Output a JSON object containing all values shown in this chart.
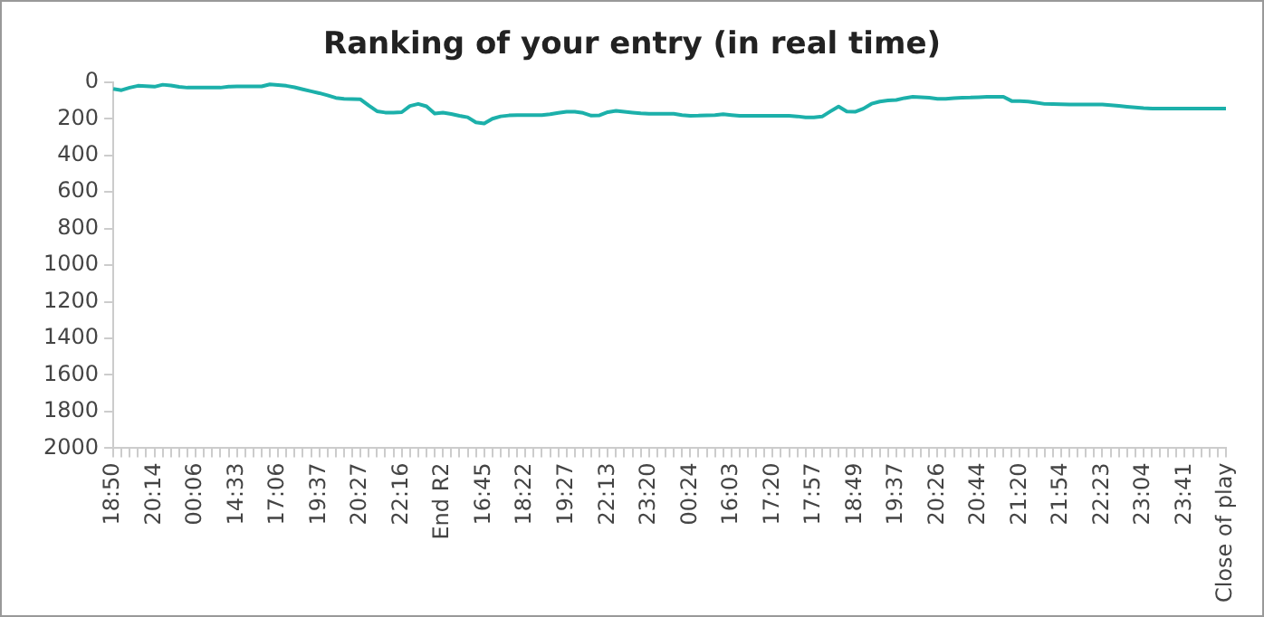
{
  "chart_data": {
    "type": "line",
    "title": "Ranking of your entry (in real time)",
    "categories": [
      "18:50",
      null,
      null,
      null,
      null,
      "20:14",
      null,
      null,
      null,
      null,
      "00:06",
      null,
      null,
      null,
      null,
      "14:33",
      null,
      null,
      null,
      null,
      "17:06",
      null,
      null,
      null,
      null,
      "19:37",
      null,
      null,
      null,
      null,
      "20:27",
      null,
      null,
      null,
      null,
      "22:16",
      null,
      null,
      null,
      null,
      "End R2",
      null,
      null,
      null,
      null,
      "16:45",
      null,
      null,
      null,
      null,
      "18:22",
      null,
      null,
      null,
      null,
      "19:27",
      null,
      null,
      null,
      null,
      "22:13",
      null,
      null,
      null,
      null,
      "23:20",
      null,
      null,
      null,
      null,
      "00:24",
      null,
      null,
      null,
      null,
      "16:03",
      null,
      null,
      null,
      null,
      "17:20",
      null,
      null,
      null,
      null,
      "17:57",
      null,
      null,
      null,
      null,
      "18:49",
      null,
      null,
      null,
      null,
      "19:37",
      null,
      null,
      null,
      null,
      "20:26",
      null,
      null,
      null,
      null,
      "20:44",
      null,
      null,
      null,
      null,
      "21:20",
      null,
      null,
      null,
      null,
      "21:54",
      null,
      null,
      null,
      null,
      "22:23",
      null,
      null,
      null,
      null,
      "23:04",
      null,
      null,
      null,
      null,
      "23:41",
      null,
      null,
      null,
      null,
      "Close of play"
    ],
    "series": [
      {
        "color": "#1cb0aa",
        "values": [
          37,
          44,
          30,
          20,
          22,
          25,
          14,
          18,
          26,
          30,
          30,
          30,
          30,
          30,
          25,
          23,
          23,
          23,
          23,
          12,
          16,
          20,
          28,
          39,
          50,
          60,
          72,
          86,
          91,
          92,
          94,
          128,
          159,
          166,
          166,
          164,
          130,
          119,
          132,
          172,
          167,
          174,
          184,
          192,
          220,
          226,
          200,
          187,
          182,
          180,
          180,
          180,
          180,
          175,
          168,
          162,
          162,
          168,
          183,
          181,
          164,
          157,
          162,
          166,
          170,
          173,
          173,
          173,
          173,
          180,
          184,
          183,
          181,
          180,
          175,
          180,
          184,
          184,
          184,
          184,
          184,
          184,
          184,
          187,
          192,
          192,
          188,
          160,
          133,
          160,
          162,
          145,
          118,
          106,
          100,
          97,
          87,
          80,
          82,
          85,
          91,
          91,
          87,
          85,
          84,
          82,
          80,
          80,
          80,
          103,
          104,
          106,
          112,
          119,
          120,
          121,
          122,
          122,
          122,
          122,
          122,
          126,
          130,
          134,
          138,
          142,
          144,
          144,
          144,
          144,
          144,
          144,
          144,
          144,
          144,
          144
        ]
      }
    ],
    "ylim": [
      2000,
      0
    ],
    "yticks": [
      0,
      200,
      400,
      600,
      800,
      1000,
      1200,
      1400,
      1600,
      1800,
      2000
    ],
    "grid": false,
    "legend": false,
    "marker": "none",
    "line_style": "solid"
  }
}
